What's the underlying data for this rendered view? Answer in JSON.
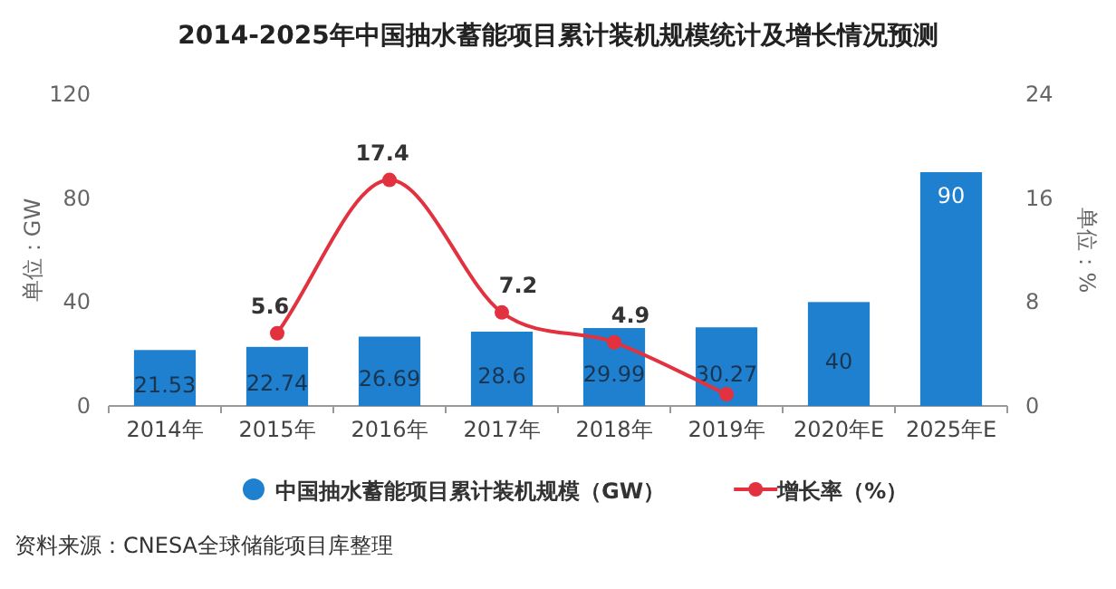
{
  "chart_data": {
    "type": "bar",
    "title": "2014-2025年中国抽水蓄能项目累计装机规模统计及增长情况预测",
    "categories": [
      "2014年",
      "2015年",
      "2016年",
      "2017年",
      "2018年",
      "2019年",
      "2020年E",
      "2025年E"
    ],
    "series": [
      {
        "name": "中国抽水蓄能项目累计装机规模（GW）",
        "color": "#1f80d0",
        "values": [
          21.53,
          22.74,
          26.69,
          28.6,
          29.99,
          30.27,
          40,
          90
        ]
      },
      {
        "name": "增长率（%）",
        "type": "line",
        "axis": "y2",
        "color": "#e2323f",
        "marker": "circle",
        "values": [
          null,
          5.6,
          17.4,
          7.2,
          4.9,
          0.9,
          null,
          null
        ],
        "value_labels": [
          null,
          "5.6",
          "17.4",
          "7.2",
          "4.9",
          null,
          null,
          null
        ]
      }
    ],
    "ylim": [
      0,
      120
    ],
    "yticks": [
      0,
      40,
      80,
      120
    ],
    "y2lim": [
      0,
      24
    ],
    "y2ticks": [
      0,
      8,
      16,
      24
    ],
    "ylabel": "单位：GW",
    "y2label": "单位：%",
    "data_labels": true,
    "legend": "bottom",
    "annotations": [
      "资料来源：CNESA全球储能项目库整理"
    ]
  }
}
